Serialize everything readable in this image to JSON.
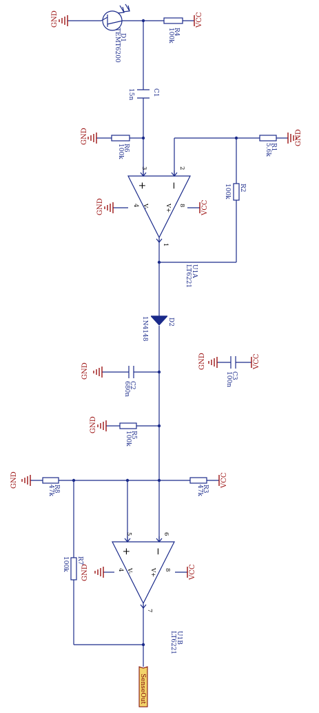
{
  "nets": {
    "gnd": "GND",
    "vcc": "VCC"
  },
  "colors": {
    "wire": "#1a2a8a",
    "power": "#9b1111",
    "port_fill": "#f3d36a"
  },
  "d1": {
    "ref": "D1",
    "part": "TEMT6200"
  },
  "r4": {
    "ref": "R4",
    "value": "100k"
  },
  "c1": {
    "ref": "C1",
    "value": "15n"
  },
  "r6": {
    "ref": "R6",
    "value": "100k"
  },
  "r1": {
    "ref": "R1",
    "value": "5.6k"
  },
  "r2": {
    "ref": "R2",
    "value": "100k"
  },
  "u1a": {
    "ref": "U1A",
    "part": "LT6221",
    "pins": {
      "plus": "3",
      "minus": "2",
      "vneg": "4",
      "vpos": "8",
      "out": "1"
    },
    "labels": {
      "vneg": "V-",
      "vpos": "V+",
      "plus": "+",
      "minus": "−"
    }
  },
  "d2": {
    "ref": "D2",
    "part": "1N4148"
  },
  "c2": {
    "ref": "C2",
    "value": "680n"
  },
  "c3": {
    "ref": "C3",
    "value": "100n"
  },
  "r5": {
    "ref": "R5",
    "value": "100k"
  },
  "r8": {
    "ref": "R8",
    "value": "47k"
  },
  "r3": {
    "ref": "R3",
    "value": "47k"
  },
  "r7": {
    "ref": "R7",
    "value": "100k"
  },
  "u1b": {
    "ref": "U1B",
    "part": "LT6221",
    "pins": {
      "plus": "5",
      "minus": "6",
      "vneg": "4",
      "vpos": "8",
      "out": "7"
    },
    "labels": {
      "vneg": "V-",
      "vpos": "V+",
      "plus": "+",
      "minus": "−"
    }
  },
  "port": {
    "label": "SenseOut"
  }
}
